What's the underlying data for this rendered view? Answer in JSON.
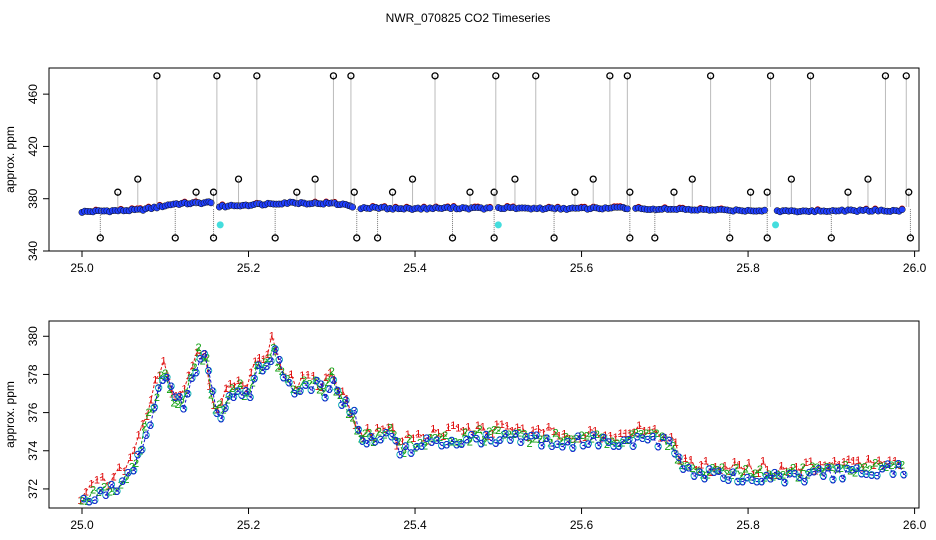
{
  "title": "NWR_070825  CO2 Timeseries",
  "chart_data": [
    {
      "type": "scatter",
      "ylabel": "approx. ppm",
      "xlim": [
        25.0,
        26.0
      ],
      "ylim": [
        340,
        480
      ],
      "x_ticks": [
        "25.0",
        "25.2",
        "25.4",
        "25.6",
        "25.8",
        "26.0"
      ],
      "y_ticks": [
        "340",
        "380",
        "420",
        "460"
      ],
      "colors": {
        "frame": "#000000",
        "marker_fill": "#1f3fff",
        "marker_edge": "#0a0a0a",
        "flag": "#000000",
        "outlier": "#44dddd",
        "red": "#e01010",
        "green": "#10a010"
      },
      "baseline_segments": [
        {
          "x": [
            25.0,
            25.02,
            25.05,
            25.07,
            25.09,
            25.11,
            25.13,
            25.15,
            25.155
          ],
          "y": [
            370,
            370.5,
            371,
            371.5,
            373.5,
            376,
            376.5,
            377,
            377.5
          ]
        },
        {
          "x": [
            25.165,
            25.19,
            25.22,
            25.25,
            25.28,
            25.3,
            25.32,
            25.325
          ],
          "y": [
            374,
            375,
            376,
            377,
            376.5,
            376.5,
            375,
            374
          ]
        },
        {
          "x": [
            25.335,
            25.36,
            25.38,
            25.4,
            25.45,
            25.49
          ],
          "y": [
            373,
            373,
            372.5,
            372.5,
            373,
            372.5
          ]
        },
        {
          "x": [
            25.5,
            25.55,
            25.6,
            25.65,
            25.655
          ],
          "y": [
            373,
            372.5,
            372.5,
            373,
            373
          ]
        },
        {
          "x": [
            25.665,
            25.7,
            25.75,
            25.8,
            25.82
          ],
          "y": [
            372.5,
            372,
            371.5,
            371,
            371
          ]
        },
        {
          "x": [
            25.835,
            25.88,
            25.92,
            25.96,
            25.985
          ],
          "y": [
            370.5,
            370.5,
            371,
            371,
            371
          ]
        }
      ],
      "spikes": [
        {
          "x": 25.043,
          "y": 385
        },
        {
          "x": 25.067,
          "y": 395
        },
        {
          "x": 25.09,
          "y": 474
        },
        {
          "x": 25.137,
          "y": 385
        },
        {
          "x": 25.158,
          "y": 385
        },
        {
          "x": 25.162,
          "y": 474
        },
        {
          "x": 25.188,
          "y": 395
        },
        {
          "x": 25.21,
          "y": 474
        },
        {
          "x": 25.258,
          "y": 385
        },
        {
          "x": 25.28,
          "y": 395
        },
        {
          "x": 25.302,
          "y": 474
        },
        {
          "x": 25.323,
          "y": 474
        },
        {
          "x": 25.327,
          "y": 385
        },
        {
          "x": 25.373,
          "y": 385
        },
        {
          "x": 25.397,
          "y": 395
        },
        {
          "x": 25.424,
          "y": 474
        },
        {
          "x": 25.466,
          "y": 385
        },
        {
          "x": 25.495,
          "y": 385
        },
        {
          "x": 25.497,
          "y": 474
        },
        {
          "x": 25.52,
          "y": 395
        },
        {
          "x": 25.545,
          "y": 474
        },
        {
          "x": 25.592,
          "y": 385
        },
        {
          "x": 25.614,
          "y": 395
        },
        {
          "x": 25.634,
          "y": 474
        },
        {
          "x": 25.655,
          "y": 474
        },
        {
          "x": 25.658,
          "y": 385
        },
        {
          "x": 25.711,
          "y": 385
        },
        {
          "x": 25.733,
          "y": 395
        },
        {
          "x": 25.755,
          "y": 474
        },
        {
          "x": 25.803,
          "y": 385
        },
        {
          "x": 25.823,
          "y": 385
        },
        {
          "x": 25.827,
          "y": 474
        },
        {
          "x": 25.852,
          "y": 395
        },
        {
          "x": 25.875,
          "y": 474
        },
        {
          "x": 25.92,
          "y": 385
        },
        {
          "x": 25.944,
          "y": 395
        },
        {
          "x": 25.965,
          "y": 474
        },
        {
          "x": 25.99,
          "y": 474
        },
        {
          "x": 25.993,
          "y": 385
        }
      ],
      "dips": [
        {
          "x": 25.022,
          "y": 350
        },
        {
          "x": 25.112,
          "y": 350
        },
        {
          "x": 25.158,
          "y": 350
        },
        {
          "x": 25.232,
          "y": 350
        },
        {
          "x": 25.33,
          "y": 350
        },
        {
          "x": 25.355,
          "y": 350
        },
        {
          "x": 25.445,
          "y": 350
        },
        {
          "x": 25.495,
          "y": 350
        },
        {
          "x": 25.567,
          "y": 350
        },
        {
          "x": 25.658,
          "y": 350
        },
        {
          "x": 25.688,
          "y": 350
        },
        {
          "x": 25.778,
          "y": 350
        },
        {
          "x": 25.823,
          "y": 350
        },
        {
          "x": 25.9,
          "y": 350
        },
        {
          "x": 25.995,
          "y": 350
        }
      ],
      "cyan_points": [
        {
          "x": 25.166,
          "y": 360
        },
        {
          "x": 25.5,
          "y": 360
        },
        {
          "x": 25.833,
          "y": 360
        }
      ]
    },
    {
      "type": "line",
      "ylabel": "approx. ppm",
      "xlim": [
        25.0,
        26.0
      ],
      "ylim": [
        371,
        380.8
      ],
      "x_ticks": [
        "25.0",
        "25.2",
        "25.4",
        "25.6",
        "25.8",
        "26.0"
      ],
      "y_ticks": [
        "372",
        "374",
        "376",
        "378",
        "380"
      ],
      "series": [
        {
          "label": "1",
          "color": "#e01010",
          "offset": 0.45
        },
        {
          "label": "2",
          "color": "#10a010",
          "offset": 0.15
        },
        {
          "label": "3",
          "color": "#1010d0",
          "offset": 0.0
        }
      ],
      "x": [
        25.0,
        25.02,
        25.04,
        25.06,
        25.075,
        25.09,
        25.1,
        25.11,
        25.12,
        25.13,
        25.14,
        25.15,
        25.155,
        25.16,
        25.17,
        25.18,
        25.19,
        25.2,
        25.21,
        25.22,
        25.23,
        25.24,
        25.26,
        25.28,
        25.29,
        25.3,
        25.31,
        25.32,
        25.325,
        25.33,
        25.34,
        25.35,
        25.37,
        25.38,
        25.4,
        25.43,
        25.46,
        25.495,
        25.5,
        25.55,
        25.6,
        25.655,
        25.665,
        25.69,
        25.71,
        25.72,
        25.74,
        25.78,
        25.82,
        25.83,
        25.86,
        25.9,
        25.94,
        25.985
      ],
      "y": [
        371.2,
        371.8,
        372.1,
        372.9,
        374.8,
        377.0,
        378.0,
        376.6,
        376.5,
        377.6,
        379.0,
        378.5,
        376.8,
        375.8,
        376.2,
        377.0,
        377.2,
        376.8,
        378.4,
        378.3,
        379.3,
        377.7,
        377.0,
        377.7,
        376.8,
        377.7,
        376.7,
        376.0,
        375.8,
        375.0,
        374.5,
        374.5,
        375.0,
        374.0,
        374.2,
        374.5,
        374.6,
        374.7,
        374.7,
        374.5,
        374.5,
        374.5,
        374.6,
        374.5,
        374.2,
        373.2,
        372.8,
        372.7,
        372.7,
        372.6,
        372.7,
        372.8,
        372.9,
        373.1
      ]
    }
  ]
}
